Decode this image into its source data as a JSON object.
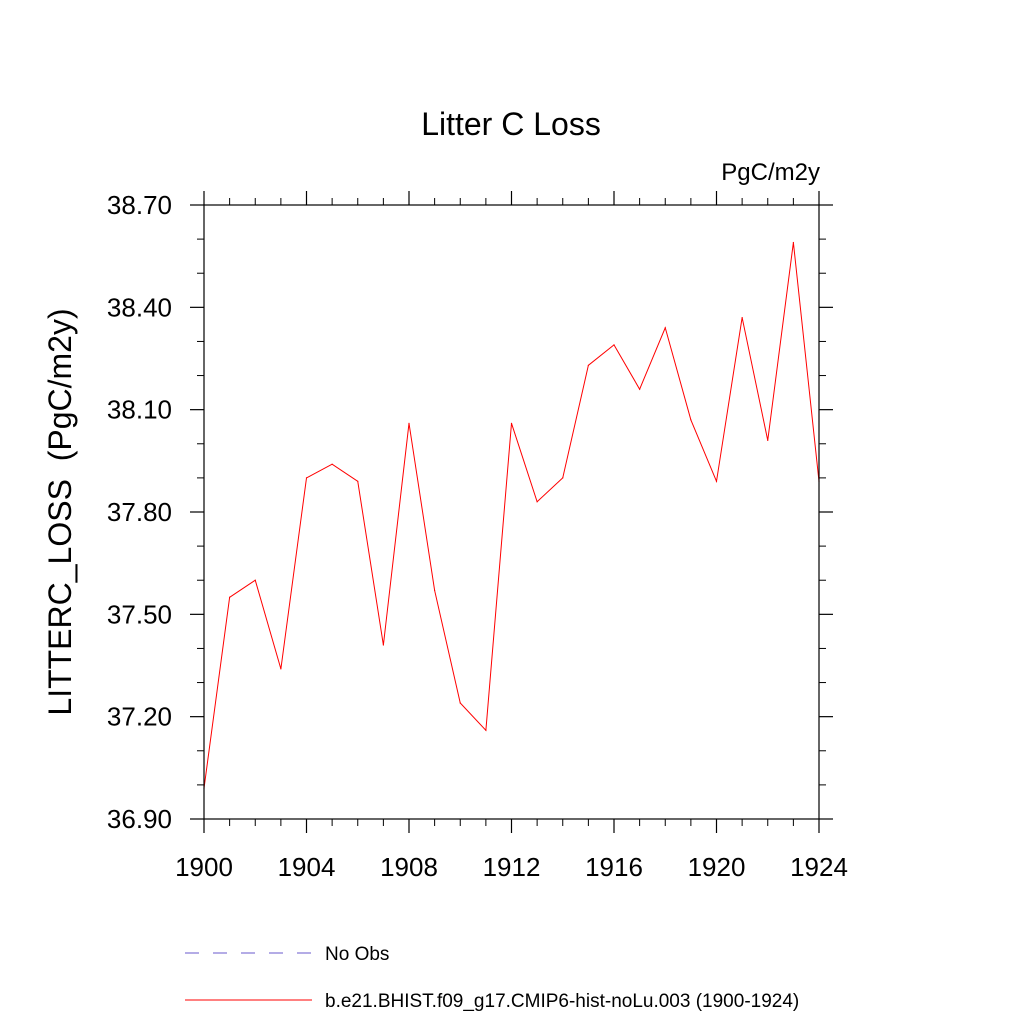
{
  "chart_data": {
    "type": "line",
    "title": "Litter C Loss",
    "units_label": "PgC/m2y",
    "ylabel": "LITTERC_LOSS  (PgC/m2y)",
    "xlabel": "",
    "xlim": [
      1900,
      1924
    ],
    "ylim": [
      36.9,
      38.7
    ],
    "x_ticks": [
      1900,
      1904,
      1908,
      1912,
      1916,
      1920,
      1924
    ],
    "x_tick_labels": [
      "1900",
      "1904",
      "1908",
      "1912",
      "1916",
      "1920",
      "1924"
    ],
    "y_ticks": [
      36.9,
      37.2,
      37.5,
      37.8,
      38.1,
      38.4,
      38.7
    ],
    "y_tick_labels": [
      "36.90",
      "37.20",
      "37.50",
      "37.80",
      "38.10",
      "38.40",
      "38.70"
    ],
    "grid": false,
    "legend_position": "bottom",
    "series": [
      {
        "name": "b.e21.BHIST.f09_g17.CMIP6-hist-noLu.003 (1900-1924)",
        "color": "#ff0000",
        "style": "solid",
        "x": [
          1900,
          1901,
          1902,
          1903,
          1904,
          1905,
          1906,
          1907,
          1908,
          1909,
          1910,
          1911,
          1912,
          1913,
          1914,
          1915,
          1916,
          1917,
          1918,
          1919,
          1920,
          1921,
          1922,
          1923,
          1924
        ],
        "values": [
          36.99,
          37.55,
          37.6,
          37.34,
          37.9,
          37.94,
          37.89,
          37.41,
          38.06,
          37.57,
          37.24,
          37.16,
          38.06,
          37.83,
          37.9,
          38.23,
          38.29,
          38.16,
          38.34,
          38.07,
          37.89,
          38.37,
          38.01,
          38.59,
          37.89
        ]
      }
    ],
    "legend": [
      {
        "label": "No Obs",
        "color": "#6a5acd",
        "style": "dashed"
      },
      {
        "label": "b.e21.BHIST.f09_g17.CMIP6-hist-noLu.003 (1900-1924)",
        "color": "#ff0000",
        "style": "solid"
      }
    ]
  }
}
